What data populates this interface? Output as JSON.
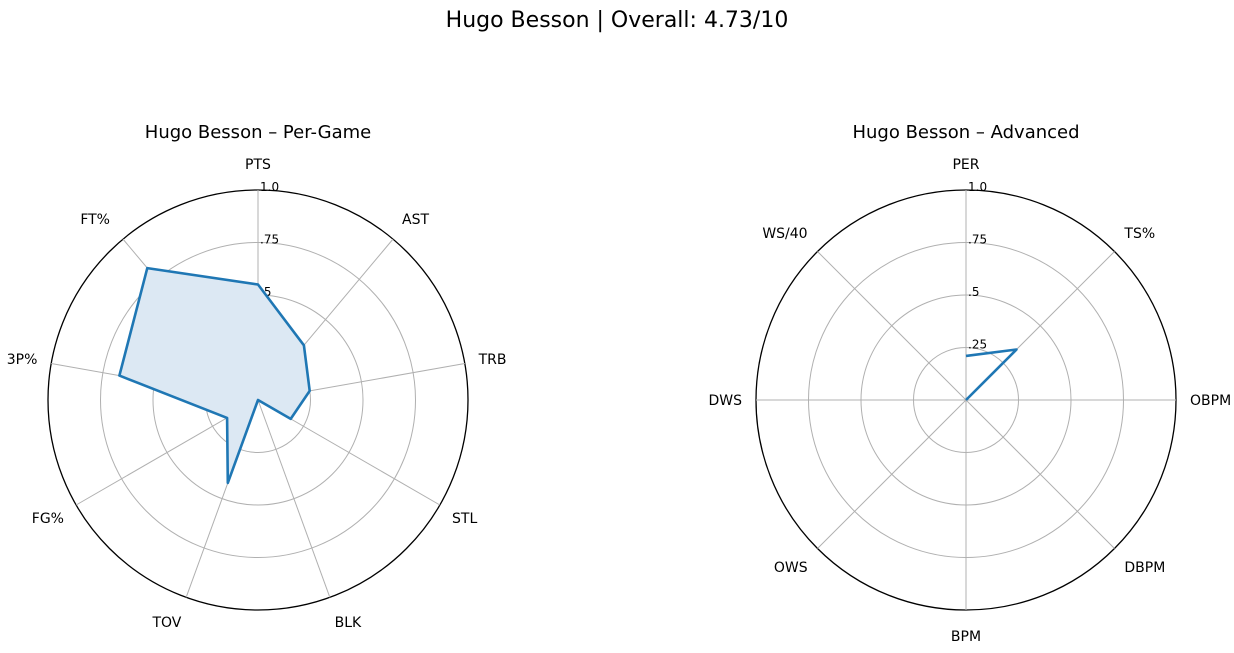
{
  "title": "Hugo Besson | Overall: 4.73/10",
  "colors": {
    "series_line": "#1f77b4",
    "series_fill": "#dce8f3",
    "grid": "#b0b0b0"
  },
  "chart_data": [
    {
      "type": "radar",
      "title": "Hugo Besson – Per-Game",
      "axes": [
        "PTS",
        "AST",
        "TRB",
        "STL",
        "BLK",
        "TOV",
        "FG%",
        "3P%",
        "FT%"
      ],
      "tick_values": [
        0.25,
        0.5,
        0.75,
        1.0
      ],
      "tick_labels": [
        ".25",
        ".5",
        ".75",
        "1.0"
      ],
      "rlim": [
        0,
        1
      ],
      "filled": true,
      "series": [
        {
          "values": [
            0.55,
            0.34,
            0.25,
            0.18,
            0.0,
            0.42,
            0.17,
            0.67,
            0.82
          ]
        }
      ]
    },
    {
      "type": "radar",
      "title": "Hugo Besson – Advanced",
      "axes": [
        "PER",
        "TS%",
        "OBPM",
        "DBPM",
        "BPM",
        "OWS",
        "DWS",
        "WS/40"
      ],
      "tick_values": [
        0.25,
        0.5,
        0.75,
        1.0
      ],
      "tick_labels": [
        ".25",
        ".5",
        ".75",
        "1.0"
      ],
      "rlim": [
        0,
        1
      ],
      "filled": false,
      "series": [
        {
          "values": [
            0.21,
            0.34,
            0,
            0,
            0,
            0,
            0,
            0
          ]
        }
      ]
    }
  ]
}
